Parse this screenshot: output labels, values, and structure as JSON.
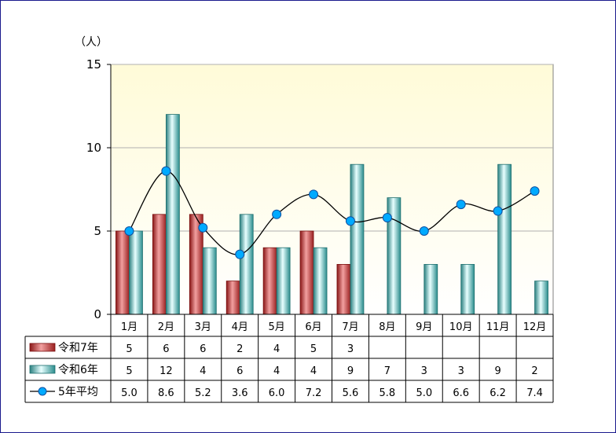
{
  "chart_data": {
    "type": "bar",
    "unit_label": "（人）",
    "categories": [
      "1月",
      "2月",
      "3月",
      "4月",
      "5月",
      "6月",
      "7月",
      "8月",
      "9月",
      "10月",
      "11月",
      "12月"
    ],
    "ylim": [
      0,
      15
    ],
    "yticks": [
      0,
      5,
      10,
      15
    ],
    "grid": true,
    "series": [
      {
        "name": "令和7年",
        "kind": "bar",
        "color": "#c03030",
        "values": [
          5,
          6,
          6,
          2,
          4,
          5,
          3,
          null,
          null,
          null,
          null,
          null
        ]
      },
      {
        "name": "令和6年",
        "kind": "bar",
        "color": "#40a8a8",
        "values": [
          5,
          12,
          4,
          6,
          4,
          4,
          9,
          7,
          3,
          3,
          9,
          2
        ]
      },
      {
        "name": "5年平均",
        "kind": "line",
        "color": "#00aaff",
        "values": [
          5.0,
          8.6,
          5.2,
          3.6,
          6.0,
          7.2,
          5.6,
          5.8,
          5.0,
          6.6,
          6.2,
          7.4
        ]
      }
    ],
    "table_rows": [
      [
        "5",
        "6",
        "6",
        "2",
        "4",
        "5",
        "3",
        "",
        "",
        "",
        "",
        ""
      ],
      [
        "5",
        "12",
        "4",
        "6",
        "4",
        "4",
        "9",
        "7",
        "3",
        "3",
        "9",
        "2"
      ],
      [
        "5.0",
        "8.6",
        "5.2",
        "3.6",
        "6.0",
        "7.2",
        "5.6",
        "5.8",
        "5.0",
        "6.6",
        "6.2",
        "7.4"
      ]
    ],
    "plot_background": [
      "#fffbd8",
      "#ffffff"
    ]
  }
}
